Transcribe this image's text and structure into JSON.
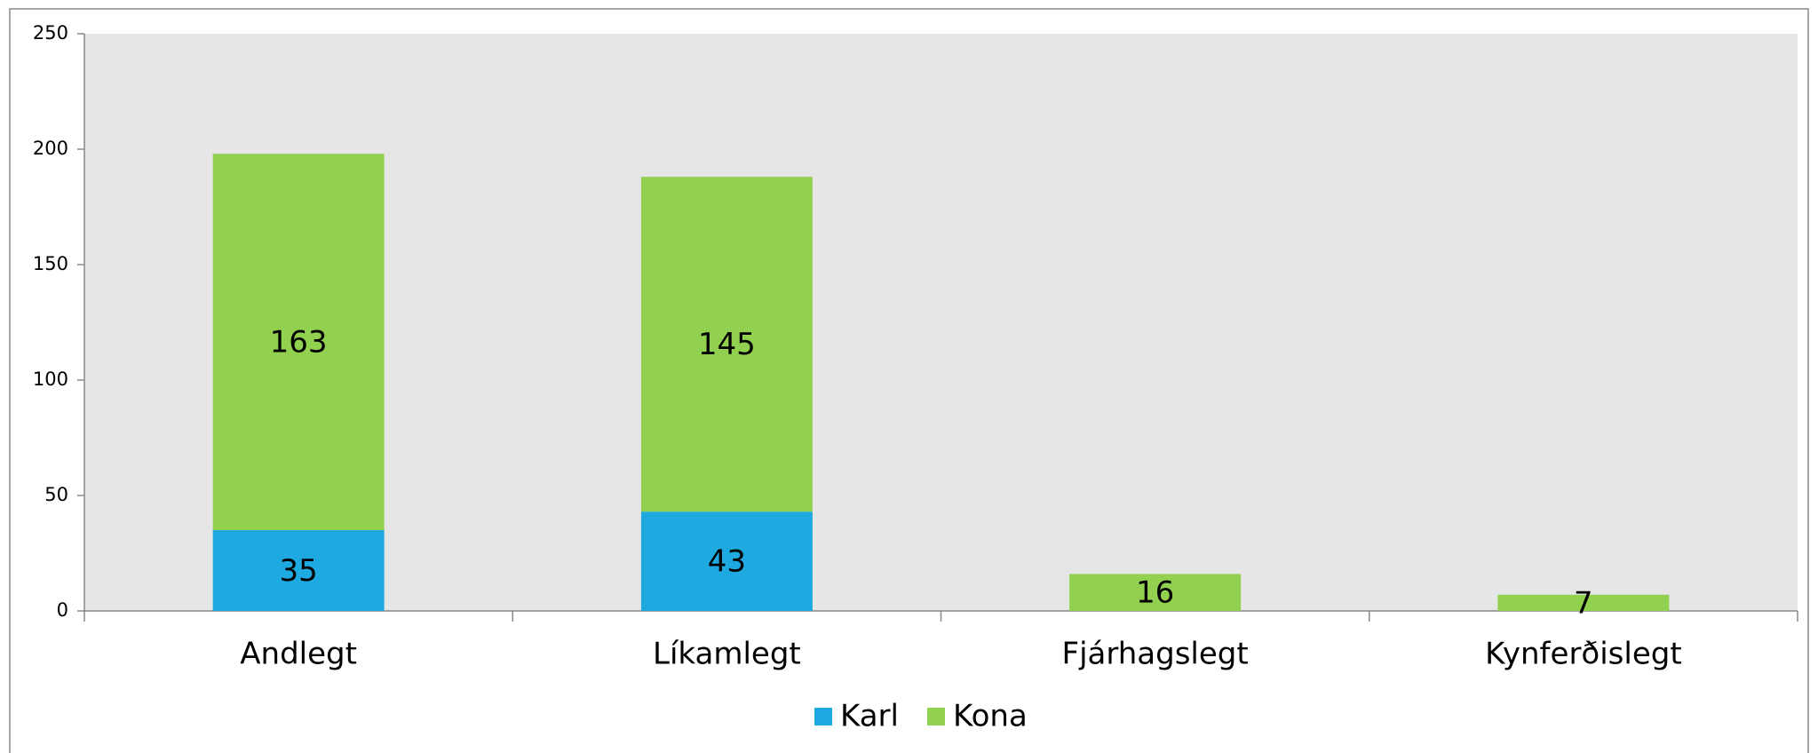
{
  "chart_data": {
    "type": "stacked_bar",
    "categories": [
      "Andlegt",
      "Líkamlegt",
      "Fjárhagslegt",
      "Kynferðislegt"
    ],
    "series": [
      {
        "name": "Karl",
        "color": "#1eaae1",
        "values": [
          35,
          43,
          null,
          null
        ]
      },
      {
        "name": "Kona",
        "color": "#92d050",
        "values": [
          163,
          145,
          16,
          7
        ]
      }
    ],
    "ylim": [
      0,
      250
    ],
    "yticks": [
      0,
      50,
      100,
      150,
      200,
      250
    ],
    "legend": "bottom"
  }
}
